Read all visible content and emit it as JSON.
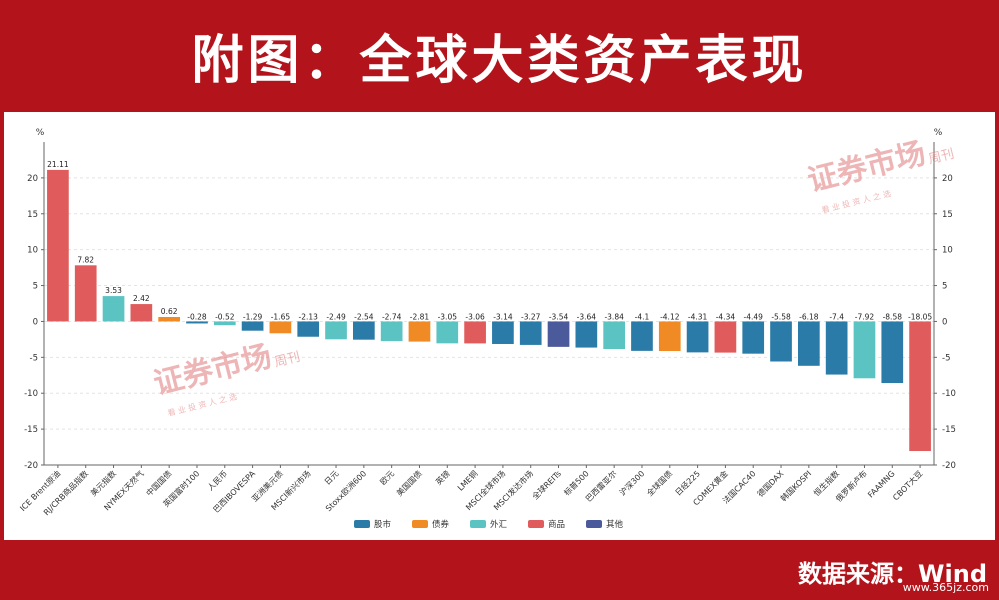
{
  "header": {
    "title": "附图：全球大类资产表现"
  },
  "footer": {
    "source": "数据来源：Wind",
    "url": "www.365jz.com"
  },
  "watermarks": [
    {
      "title": "证券市场",
      "side": "周刊",
      "sub": "看 业 投 资 人 之 选"
    },
    {
      "title": "证券市场",
      "side": "周刊",
      "sub": "看 业 投 资 人 之 选"
    }
  ],
  "colors": {
    "股市": "#2b7ba8",
    "债券": "#f08a24",
    "外汇": "#5cc3c3",
    "商品": "#e05c5c",
    "其他": "#4b5a9a"
  },
  "chart_data": {
    "type": "bar",
    "ylabel_left": "%",
    "ylabel_right": "%",
    "ylim": [
      -20,
      25
    ],
    "yticks": [
      -20,
      -15,
      -10,
      -5,
      0,
      5,
      10,
      15,
      20
    ],
    "grid": true,
    "legend_position": "bottom",
    "legend": [
      "股市",
      "债券",
      "外汇",
      "商品",
      "其他"
    ],
    "categories": [
      "ICE Brent原油",
      "RJ/CRB商品指数",
      "美元指数",
      "NYMEX天然气",
      "中国国债",
      "英国富时100",
      "人民币",
      "巴西IBOVESPA",
      "亚洲美元债",
      "MSCI新兴市场",
      "日元",
      "Stoxx欧洲600",
      "欧元",
      "美国国债",
      "英镑",
      "LME铜",
      "MSCI全球市场",
      "MSCI发达市场",
      "全球REITs",
      "标普500",
      "巴西雷亚尔",
      "沪深300",
      "全球国债",
      "日经225",
      "COMEX黄金",
      "法国CAC40",
      "德国DAX",
      "韩国KOSPI",
      "恒生指数",
      "俄罗斯卢布",
      "FAAMNG",
      "CBOT大豆"
    ],
    "values": [
      21.11,
      7.82,
      3.53,
      2.42,
      0.62,
      -0.28,
      -0.52,
      -1.29,
      -1.65,
      -2.13,
      -2.49,
      -2.54,
      -2.74,
      -2.81,
      -3.05,
      -3.06,
      -3.14,
      -3.27,
      -3.54,
      -3.64,
      -3.84,
      -4.1,
      -4.12,
      -4.31,
      -4.34,
      -4.49,
      -5.58,
      -6.18,
      -7.4,
      -7.92,
      -8.58,
      -18.05
    ],
    "value_labels": [
      "21.11",
      "7.82",
      "3.53",
      "2.42",
      "0.62",
      "-0.28",
      "-0.52",
      "-1.29",
      "-1.65",
      "-2.13",
      "-2.49",
      "-2.54",
      "-2.74",
      "-2.81",
      "-3.05",
      "-3.06",
      "-3.14",
      "-3.27",
      "-3.54",
      "-3.64",
      "-3.84",
      "-4.1",
      "-4.12",
      "-4.31",
      "-4.34",
      "-4.49",
      "-5.58",
      "-6.18",
      "-7.4",
      "-7.92",
      "-8.58",
      "-18.05"
    ],
    "asset_class": [
      "商品",
      "商品",
      "外汇",
      "商品",
      "债券",
      "股市",
      "外汇",
      "股市",
      "债券",
      "股市",
      "外汇",
      "股市",
      "外汇",
      "债券",
      "外汇",
      "商品",
      "股市",
      "股市",
      "其他",
      "股市",
      "外汇",
      "股市",
      "债券",
      "股市",
      "商品",
      "股市",
      "股市",
      "股市",
      "股市",
      "外汇",
      "股市",
      "商品"
    ]
  }
}
